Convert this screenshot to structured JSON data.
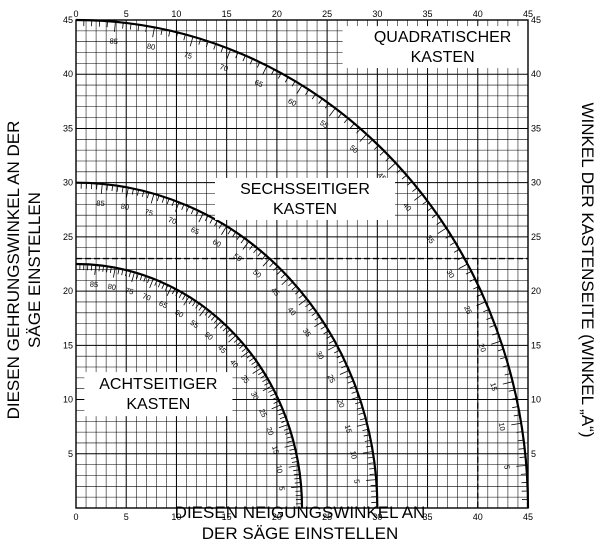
{
  "chart_data": {
    "type": "line",
    "xlabel_line1": "DIESEN NEIGUNGSWINKEL AN",
    "xlabel_line2": "DER SÄGE EINSTELLEN",
    "ylabel_line1": "DIESEN GEHRUNGSWINKEL AN DER",
    "ylabel_line2": "SÄGE EINSTELLEN",
    "ylabel_right": "WINKEL DER KASTENSEITE (WINKEL „A“)",
    "xlim": [
      0,
      45
    ],
    "ylim": [
      0,
      45
    ],
    "x_ticks": [
      0,
      5,
      10,
      15,
      20,
      25,
      30,
      35,
      40,
      45
    ],
    "y_ticks": [
      5,
      10,
      15,
      20,
      25,
      30,
      35,
      40,
      45
    ],
    "grid": true,
    "minor_grid_step": 1,
    "arc_tick_labels": [
      85,
      80,
      75,
      70,
      65,
      60,
      55,
      50,
      45,
      40,
      35,
      30,
      25,
      20,
      15,
      10,
      5
    ],
    "series": [
      {
        "name": "QUADRATISCHER KASTEN",
        "label_line1": "QUADRATISCHER",
        "label_line2": "KASTEN",
        "x_end": 45,
        "y_start": 45
      },
      {
        "name": "SECHSSEITIGER KASTEN",
        "label_line1": "SECHSSEITIGER",
        "label_line2": "KASTEN",
        "x_end": 30,
        "y_start": 30
      },
      {
        "name": "ACHTSEITIGER KASTEN",
        "label_line1": "ACHTSEITIGER",
        "label_line2": "KASTEN",
        "x_end": 22.5,
        "y_start": 22.5
      }
    ],
    "example_guide": {
      "y": 23,
      "x": 40
    }
  }
}
